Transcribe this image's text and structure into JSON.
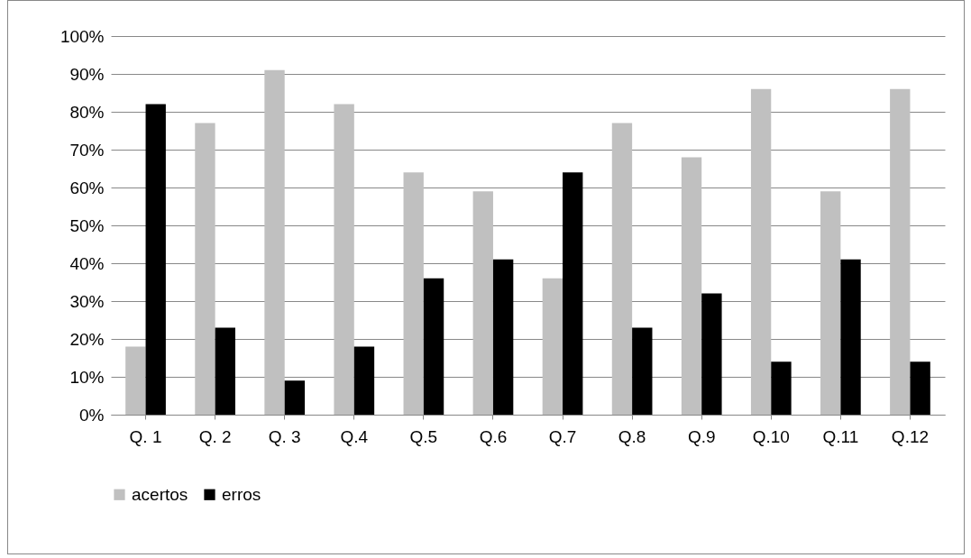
{
  "chart_data": {
    "type": "bar",
    "categories": [
      "Q. 1",
      "Q. 2",
      "Q. 3",
      "Q.4",
      "Q.5",
      "Q.6",
      "Q.7",
      "Q.8",
      "Q.9",
      "Q.10",
      "Q.11",
      "Q.12"
    ],
    "series": [
      {
        "name": "acertos",
        "color": "#c0c0c0",
        "values": [
          18,
          77,
          91,
          82,
          64,
          59,
          36,
          77,
          68,
          86,
          59,
          86
        ]
      },
      {
        "name": "erros",
        "color": "#000000",
        "values": [
          82,
          23,
          9,
          18,
          36,
          41,
          64,
          23,
          32,
          14,
          41,
          14
        ]
      }
    ],
    "ylim": [
      0,
      100
    ],
    "yticks": [
      {
        "value": 0,
        "label": "0%"
      },
      {
        "value": 10,
        "label": "10%"
      },
      {
        "value": 20,
        "label": "20%"
      },
      {
        "value": 30,
        "label": "30%"
      },
      {
        "value": 40,
        "label": "40%"
      },
      {
        "value": 50,
        "label": "50%"
      },
      {
        "value": 60,
        "label": "60%"
      },
      {
        "value": 70,
        "label": "70%"
      },
      {
        "value": 80,
        "label": "80%"
      },
      {
        "value": 90,
        "label": "90%"
      },
      {
        "value": 100,
        "label": "100%"
      }
    ],
    "grid": "y",
    "legend": "bottom"
  }
}
